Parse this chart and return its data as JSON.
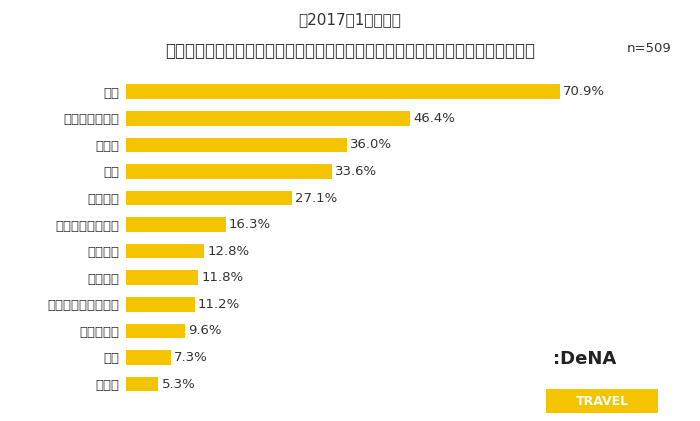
{
  "title_line1": "【2017年1月調査】",
  "title_line2": "プレミアムフライデーが導入されたら何をして過ごしたいですか？（複数回答可）",
  "n_label": "n=509",
  "categories": [
    "旅行",
    "自宅でゆっくり",
    "買い物",
    "外食",
    "映画鑑賞",
    "ライブや舞台鑑賞",
    "スポーツ",
    "自宅作業",
    "テーマパークに行く",
    "家で手料理",
    "読書",
    "その他"
  ],
  "values": [
    70.9,
    46.4,
    36.0,
    33.6,
    27.1,
    16.3,
    12.8,
    11.8,
    11.2,
    9.6,
    7.3,
    5.3
  ],
  "bar_color": "#F5C400",
  "bar_height": 0.55,
  "xlim": [
    0,
    80
  ],
  "background_color": "#ffffff",
  "label_fontsize": 9.5,
  "value_fontsize": 9.5,
  "title_fontsize1": 11,
  "title_fontsize2": 12,
  "n_fontsize": 9.5,
  "dena_logo_color": "#333333",
  "dena_box_color": "#F5C400"
}
